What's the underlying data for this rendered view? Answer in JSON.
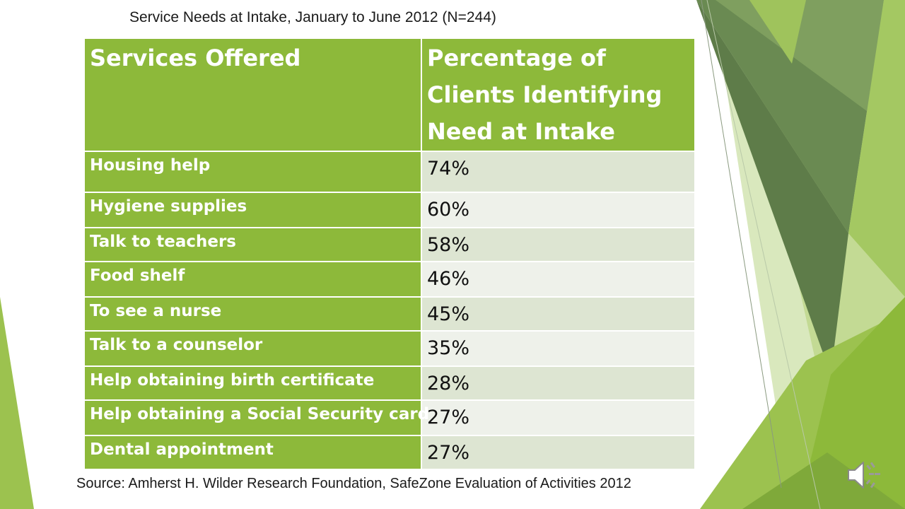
{
  "title": "Service Needs at Intake, January to June 2012 (N=244)",
  "table": {
    "headers": [
      "Services Offered",
      "Percentage of Clients Identifying Need at Intake"
    ],
    "rows": [
      {
        "service": "Housing help",
        "percent": "74%"
      },
      {
        "service": "Hygiene supplies",
        "percent": "60%"
      },
      {
        "service": "Talk to teachers",
        "percent": "58%"
      },
      {
        "service": "Food shelf",
        "percent": "46%"
      },
      {
        "service": "To see a nurse",
        "percent": "45%"
      },
      {
        "service": "Talk to a counselor",
        "percent": "35%"
      },
      {
        "service": "Help obtaining birth certificate",
        "percent": "28%"
      },
      {
        "service": "Help obtaining a Social Security card",
        "percent": "27%"
      },
      {
        "service": "Dental appointment",
        "percent": "27%"
      }
    ]
  },
  "source": "Source: Amherst H. Wilder Research Foundation, SafeZone Evaluation of Activities 2012",
  "icons": {
    "audio": "speaker-icon"
  },
  "colors": {
    "header_green": "#8db93a",
    "row_band_a": "#dde5d2",
    "row_band_b": "#eef1ea",
    "decor_dark_green": "#5f7e4a",
    "decor_light_green": "#c9de9f"
  }
}
